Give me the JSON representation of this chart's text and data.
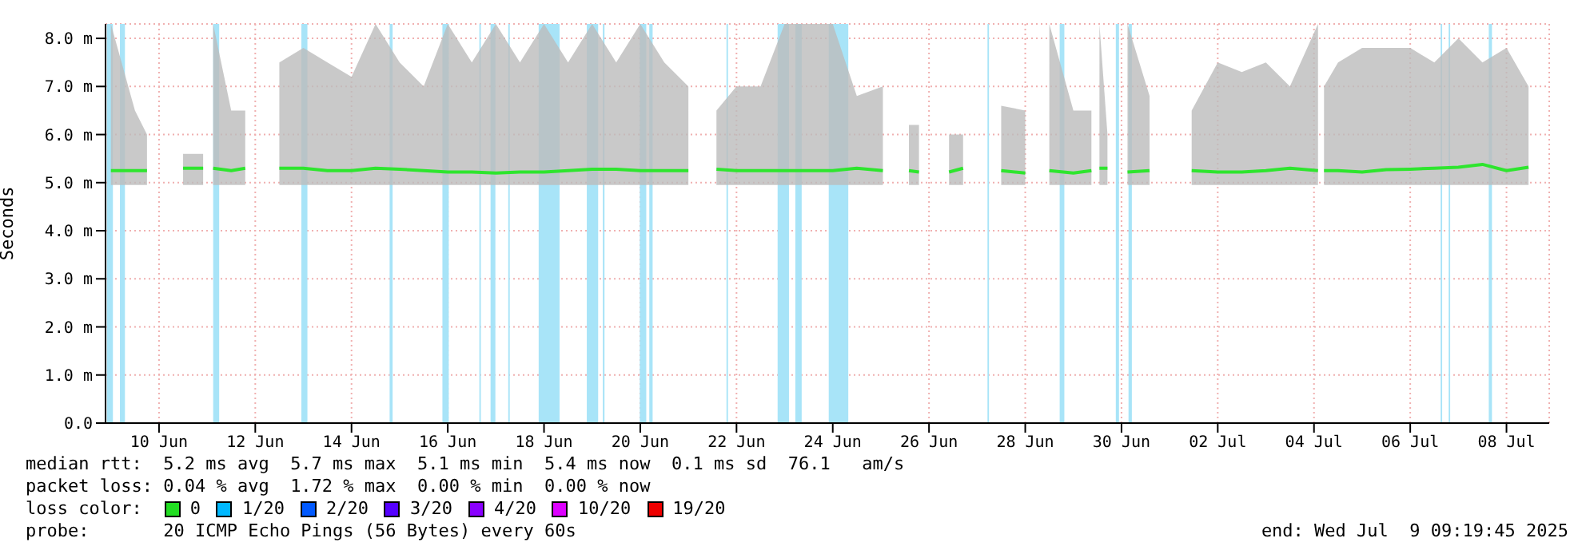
{
  "chart_data": {
    "type": "line",
    "ylabel": "Seconds",
    "xlim": [
      "2025-06-09T09:19",
      "2025-07-09T09:19"
    ],
    "xticks": [
      {
        "value": "2025-06-10T12:00",
        "label": "10 Jun"
      },
      {
        "value": "2025-06-12T12:00",
        "label": "12 Jun"
      },
      {
        "value": "2025-06-14T12:00",
        "label": "14 Jun"
      },
      {
        "value": "2025-06-16T12:00",
        "label": "16 Jun"
      },
      {
        "value": "2025-06-18T12:00",
        "label": "18 Jun"
      },
      {
        "value": "2025-06-20T12:00",
        "label": "20 Jun"
      },
      {
        "value": "2025-06-22T12:00",
        "label": "22 Jun"
      },
      {
        "value": "2025-06-24T12:00",
        "label": "24 Jun"
      },
      {
        "value": "2025-06-26T12:00",
        "label": "26 Jun"
      },
      {
        "value": "2025-06-28T12:00",
        "label": "28 Jun"
      },
      {
        "value": "2025-06-30T12:00",
        "label": "30 Jun"
      },
      {
        "value": "2025-07-02T12:00",
        "label": "02 Jul"
      },
      {
        "value": "2025-07-04T12:00",
        "label": "04 Jul"
      },
      {
        "value": "2025-07-06T12:00",
        "label": "06 Jul"
      },
      {
        "value": "2025-07-08T12:00",
        "label": "08 Jul"
      }
    ],
    "ylim": [
      0,
      8.3
    ],
    "yticks": [
      {
        "value": 0,
        "label": "0.0"
      },
      {
        "value": 1,
        "label": "1.0 m"
      },
      {
        "value": 2,
        "label": "2.0 m"
      },
      {
        "value": 3,
        "label": "3.0 m"
      },
      {
        "value": 4,
        "label": "4.0 m"
      },
      {
        "value": 5,
        "label": "5.0 m"
      },
      {
        "value": 6,
        "label": "6.0 m"
      },
      {
        "value": 7,
        "label": "7.0 m"
      },
      {
        "value": 8,
        "label": "8.0 m"
      }
    ],
    "grid": true,
    "legend": false,
    "marker": "none",
    "line_style": "solid",
    "series": [
      {
        "color": "#2ee52e",
        "x": [
          "2025-06-09T12:00",
          "2025-06-10T00:00",
          "2025-06-10T06:00",
          "2025-06-10T15:00",
          "2025-06-11T00:00",
          "2025-06-11T10:00",
          "2025-06-11T12:00",
          "2025-06-11T15:00",
          "2025-06-12T00:00",
          "2025-06-12T07:00",
          "2025-06-12T15:00",
          "2025-06-13T00:00",
          "2025-06-13T12:00",
          "2025-06-14T00:00",
          "2025-06-14T12:00",
          "2025-06-15T00:00",
          "2025-06-15T12:00",
          "2025-06-16T00:00",
          "2025-06-16T12:00",
          "2025-06-17T00:00",
          "2025-06-17T12:00",
          "2025-06-18T00:00",
          "2025-06-18T12:00",
          "2025-06-19T00:00",
          "2025-06-19T12:00",
          "2025-06-20T00:00",
          "2025-06-20T12:00",
          "2025-06-21T00:00",
          "2025-06-21T12:00",
          "2025-06-21T21:00",
          "2025-06-22T02:00",
          "2025-06-22T12:00",
          "2025-06-23T00:00",
          "2025-06-23T12:00",
          "2025-06-24T00:00",
          "2025-06-24T12:00",
          "2025-06-25T00:00",
          "2025-06-25T13:00",
          "2025-06-25T20:00",
          "2025-06-26T02:00",
          "2025-06-26T07:00",
          "2025-06-26T15:00",
          "2025-06-26T22:00",
          "2025-06-27T05:00",
          "2025-06-27T15:00",
          "2025-06-28T00:00",
          "2025-06-28T12:00",
          "2025-06-28T18:00",
          "2025-06-29T00:00",
          "2025-06-29T12:00",
          "2025-06-29T21:00",
          "2025-06-29T23:00",
          "2025-06-30T01:00",
          "2025-06-30T05:00",
          "2025-06-30T10:00",
          "2025-06-30T15:00",
          "2025-07-01T02:00",
          "2025-07-01T12:00",
          "2025-07-01T23:00",
          "2025-07-02T12:00",
          "2025-07-03T00:00",
          "2025-07-03T12:00",
          "2025-07-04T00:00",
          "2025-07-04T14:00",
          "2025-07-04T15:00",
          "2025-07-04T17:00",
          "2025-07-05T00:00",
          "2025-07-05T12:00",
          "2025-07-06T00:00",
          "2025-07-06T12:00",
          "2025-07-07T00:00",
          "2025-07-07T12:00",
          "2025-07-08T00:00",
          "2025-07-08T12:00",
          "2025-07-08T23:00"
        ],
        "values": [
          5.25,
          5.25,
          5.25,
          null,
          5.3,
          5.3,
          null,
          5.3,
          5.25,
          5.3,
          null,
          5.3,
          5.3,
          5.25,
          5.25,
          5.3,
          5.28,
          5.25,
          5.22,
          5.22,
          5.2,
          5.22,
          5.22,
          5.25,
          5.28,
          5.28,
          5.25,
          5.25,
          5.25,
          null,
          5.28,
          5.25,
          5.25,
          5.25,
          5.25,
          5.25,
          5.3,
          5.25,
          null,
          5.25,
          5.22,
          null,
          5.22,
          5.3,
          null,
          5.25,
          5.2,
          null,
          5.25,
          5.2,
          5.25,
          null,
          5.3,
          5.3,
          null,
          5.22,
          5.25,
          null,
          5.25,
          5.22,
          5.22,
          5.25,
          5.3,
          5.25,
          null,
          5.25,
          5.25,
          5.22,
          5.27,
          5.28,
          5.3,
          5.32,
          5.38,
          5.25,
          5.32
        ],
        "lower": [
          4.95,
          4.95,
          4.95,
          null,
          4.95,
          4.95,
          null,
          4.95,
          4.95,
          4.95,
          null,
          4.95,
          4.95,
          4.95,
          4.95,
          4.95,
          4.95,
          4.95,
          4.95,
          4.95,
          4.95,
          4.95,
          4.95,
          4.95,
          4.95,
          4.95,
          4.95,
          4.95,
          4.95,
          null,
          4.95,
          4.95,
          4.95,
          4.95,
          4.95,
          4.95,
          4.95,
          4.95,
          null,
          4.95,
          4.95,
          null,
          4.95,
          4.95,
          null,
          4.95,
          4.95,
          null,
          4.95,
          4.95,
          4.95,
          null,
          4.95,
          4.95,
          null,
          4.95,
          4.95,
          null,
          4.95,
          4.95,
          4.95,
          4.95,
          4.95,
          4.95,
          null,
          4.95,
          4.95,
          4.95,
          4.95,
          4.95,
          4.95,
          4.95,
          4.95,
          4.95,
          4.95
        ],
        "upper": [
          8.3,
          6.5,
          6,
          null,
          5.6,
          5.6,
          null,
          8.3,
          6.5,
          6.5,
          null,
          7.5,
          7.8,
          7.5,
          7.2,
          8.3,
          7.5,
          7,
          8.3,
          7.5,
          8.3,
          7.5,
          8.3,
          7.5,
          8.3,
          7.5,
          8.3,
          7.5,
          7,
          null,
          6.5,
          7,
          7,
          8.3,
          8.3,
          8.3,
          6.8,
          7,
          null,
          6.2,
          6.2,
          null,
          6,
          6,
          null,
          6.6,
          6.5,
          null,
          8.3,
          6.5,
          6.5,
          null,
          8.3,
          6,
          null,
          8.3,
          6.8,
          null,
          6.5,
          7.5,
          7.3,
          7.5,
          7,
          8.3,
          null,
          7,
          7.5,
          7.8,
          7.8,
          7.8,
          7.5,
          8,
          7.5,
          7.8,
          7
        ]
      }
    ],
    "bands": [
      {
        "axis": "x",
        "from": "2025-06-09T10:00",
        "to": "2025-06-09T13:00",
        "color": "#a8e4f8"
      },
      {
        "axis": "x",
        "from": "2025-06-09T16:30",
        "to": "2025-06-09T19:00",
        "color": "#a8e4f8"
      },
      {
        "axis": "x",
        "from": "2025-06-11T15:00",
        "to": "2025-06-11T18:00",
        "color": "#a8e4f8"
      },
      {
        "axis": "x",
        "from": "2025-06-13T11:00",
        "to": "2025-06-13T14:00",
        "color": "#a8e4f8"
      },
      {
        "axis": "x",
        "from": "2025-06-15T07:00",
        "to": "2025-06-15T08:30",
        "color": "#a8e4f8"
      },
      {
        "axis": "x",
        "from": "2025-06-16T09:20",
        "to": "2025-06-16T12:30",
        "color": "#a8e4f8"
      },
      {
        "axis": "x",
        "from": "2025-06-17T03:45",
        "to": "2025-06-17T04:30",
        "color": "#a8e4f8"
      },
      {
        "axis": "x",
        "from": "2025-06-17T09:20",
        "to": "2025-06-17T11:45",
        "color": "#a8e4f8"
      },
      {
        "axis": "x",
        "from": "2025-06-17T18:10",
        "to": "2025-06-17T18:55",
        "color": "#a8e4f8"
      },
      {
        "axis": "x",
        "from": "2025-06-18T09:20",
        "to": "2025-06-18T19:45",
        "color": "#a8e4f8"
      },
      {
        "axis": "x",
        "from": "2025-06-19T09:20",
        "to": "2025-06-19T15:00",
        "color": "#a8e4f8"
      },
      {
        "axis": "x",
        "from": "2025-06-19T17:20",
        "to": "2025-06-19T18:10",
        "color": "#a8e4f8"
      },
      {
        "axis": "x",
        "from": "2025-06-20T11:45",
        "to": "2025-06-20T15:00",
        "color": "#a8e4f8"
      },
      {
        "axis": "x",
        "from": "2025-06-20T16:30",
        "to": "2025-06-20T18:10",
        "color": "#a8e4f8"
      },
      {
        "axis": "x",
        "from": "2025-06-22T07:00",
        "to": "2025-06-22T07:45",
        "color": "#a8e4f8"
      },
      {
        "axis": "x",
        "from": "2025-06-23T08:30",
        "to": "2025-06-23T14:10",
        "color": "#a8e4f8"
      },
      {
        "axis": "x",
        "from": "2025-06-23T17:20",
        "to": "2025-06-23T20:30",
        "color": "#a8e4f8"
      },
      {
        "axis": "x",
        "from": "2025-06-24T10:00",
        "to": "2025-06-24T19:45",
        "color": "#a8e4f8"
      },
      {
        "axis": "x",
        "from": "2025-06-27T17:10",
        "to": "2025-06-27T17:55",
        "color": "#a8e4f8"
      },
      {
        "axis": "x",
        "from": "2025-06-29T05:10",
        "to": "2025-06-29T07:30",
        "color": "#a8e4f8"
      },
      {
        "axis": "x",
        "from": "2025-06-30T09:10",
        "to": "2025-06-30T10:45",
        "color": "#a8e4f8"
      },
      {
        "axis": "x",
        "from": "2025-06-30T15:30",
        "to": "2025-06-30T17:10",
        "color": "#a8e4f8"
      },
      {
        "axis": "x",
        "from": "2025-07-07T03:10",
        "to": "2025-07-07T03:55",
        "color": "#a8e4f8"
      },
      {
        "axis": "x",
        "from": "2025-07-07T07:10",
        "to": "2025-07-07T07:55",
        "color": "#a8e4f8"
      },
      {
        "axis": "x",
        "from": "2025-07-08T03:10",
        "to": "2025-07-08T04:45",
        "color": "#a8e4f8"
      }
    ],
    "annotations": [
      "median rtt:  5.2 ms avg  5.7 ms max  5.1 ms min  5.4 ms now  0.1 ms sd  76.1   am/s",
      "packet loss: 0.04 % avg  1.72 % max  0.00 % min  0.00 % now",
      "loss color:",
      "0",
      "1/20",
      "2/20",
      "3/20",
      "4/20",
      "10/20",
      "19/20",
      "probe:       20 ICMP Echo Pings (56 Bytes) every 60s",
      "end: Wed Jul  9 09:19:45 2025"
    ]
  }
}
